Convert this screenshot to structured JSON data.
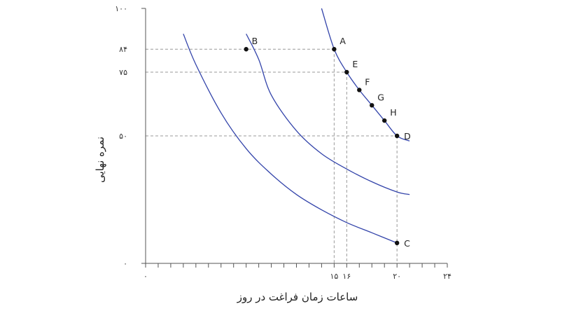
{
  "chart_data": {
    "type": "line",
    "title": "",
    "xlabel": "ساعات زمان فراغت در روز",
    "ylabel": "نمره نهایی",
    "xlim": [
      0,
      24
    ],
    "ylim": [
      0,
      100
    ],
    "x_ticks": [
      {
        "value": 0,
        "label": "۰"
      },
      {
        "value": 15,
        "label": "۱۵"
      },
      {
        "value": 16,
        "label": "۱۶"
      },
      {
        "value": 20,
        "label": "۲۰"
      },
      {
        "value": 24,
        "label": "۲۴"
      }
    ],
    "y_ticks": [
      {
        "value": 0,
        "label": "۰"
      },
      {
        "value": 50,
        "label": "۵۰"
      },
      {
        "value": 75,
        "label": "۷۵"
      },
      {
        "value": 84,
        "label": "۸۴"
      },
      {
        "value": 100,
        "label": "۱۰۰"
      }
    ],
    "grid": false,
    "series": [
      {
        "x": [
          3,
          4,
          6,
          8,
          10,
          12,
          14,
          16,
          18,
          20
        ],
        "y": [
          90,
          78,
          59,
          45,
          35,
          27,
          21,
          16,
          12,
          8
        ]
      },
      {
        "x": [
          8,
          9,
          10,
          12,
          14,
          16,
          18,
          20,
          21
        ],
        "y": [
          90,
          80,
          66,
          52,
          43,
          37,
          32,
          28,
          27
        ]
      },
      {
        "x": [
          14,
          15,
          16,
          17,
          18,
          19,
          20,
          21
        ],
        "y": [
          100,
          84,
          75,
          68,
          62,
          56,
          50,
          48
        ]
      }
    ],
    "points": [
      {
        "label": "A",
        "x": 15,
        "y": 84
      },
      {
        "label": "B",
        "x": 8,
        "y": 84
      },
      {
        "label": "C",
        "x": 20,
        "y": 8
      },
      {
        "label": "D",
        "x": 20,
        "y": 50
      },
      {
        "label": "E",
        "x": 16,
        "y": 75
      },
      {
        "label": "F",
        "x": 17,
        "y": 68
      },
      {
        "label": "G",
        "x": 18,
        "y": 62
      },
      {
        "label": "H",
        "x": 19,
        "y": 56
      }
    ],
    "reference_lines": [
      {
        "label": "A",
        "x": 15,
        "y": 84
      },
      {
        "label": "E",
        "x": 16,
        "y": 75
      },
      {
        "label": "D",
        "x": 20,
        "y": 50
      }
    ],
    "colors": {
      "curve": "#3344aa",
      "axis": "#555555",
      "guide": "#999999",
      "point": "#111111"
    }
  }
}
